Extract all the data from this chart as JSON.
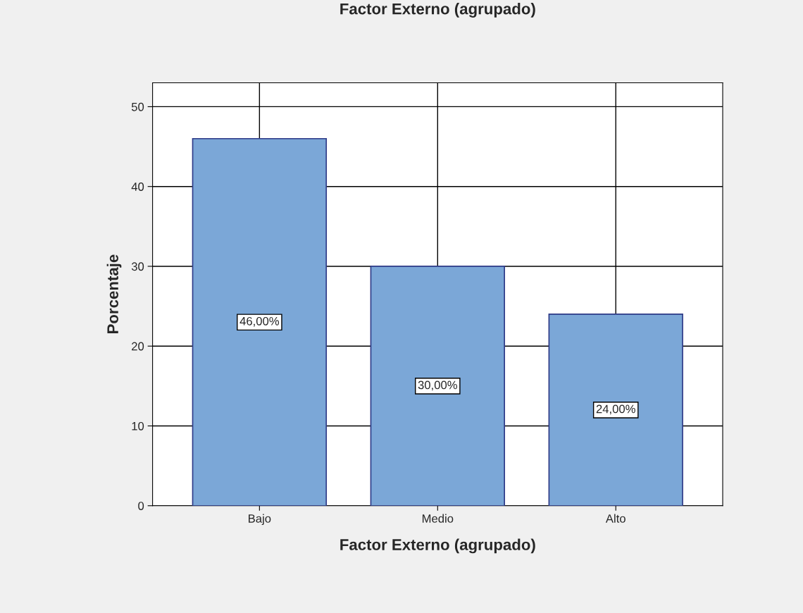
{
  "chart_data": {
    "type": "bar",
    "title": "Factor Externo (agrupado)",
    "xlabel": "Factor Externo (agrupado)",
    "ylabel": "Porcentaje",
    "categories": [
      "Bajo",
      "Medio",
      "Alto"
    ],
    "values": [
      46,
      30,
      24
    ],
    "color": "#7ba7d7",
    "value_labels": [
      "46,00%",
      "30,00%",
      "24,00%"
    ],
    "ylim": [
      0,
      53
    ],
    "yticks": [
      0,
      10,
      20,
      30,
      40,
      50
    ],
    "grid": true
  }
}
